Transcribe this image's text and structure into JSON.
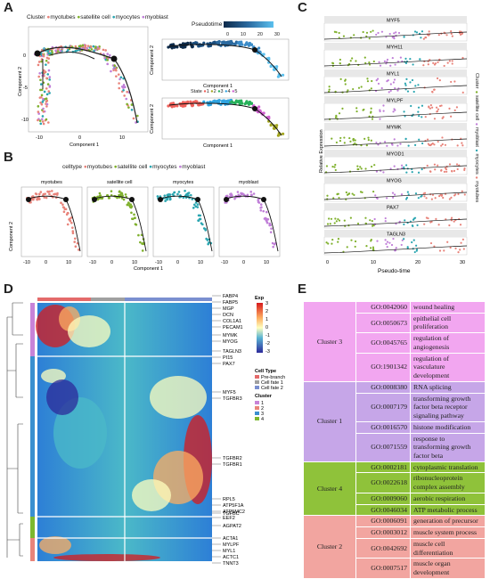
{
  "panels": {
    "a": "A",
    "b": "B",
    "c": "C",
    "d": "D",
    "e": "E"
  },
  "panel_a": {
    "legend_title": "Cluster",
    "legend_items": [
      "myotubes",
      "satellite cell",
      "myocytes",
      "myoblast"
    ],
    "legend_colors": [
      "#e8837a",
      "#7fb02c",
      "#2aa5b0",
      "#c07fd8"
    ],
    "pseudotime_title": "Pseudotime",
    "pseudotime_ticks": [
      "0",
      "10",
      "20",
      "30"
    ],
    "state_title": "State",
    "state_items": [
      "1",
      "2",
      "3",
      "4",
      "5"
    ],
    "state_colors": [
      "#f0605a",
      "#a3a520",
      "#27b05a",
      "#2ea3e0",
      "#d060d0"
    ],
    "ylabel": "Component 2",
    "xlabel": "Component 1",
    "xticks": [
      "-10",
      "0",
      "10"
    ],
    "yticks": [
      "0",
      "-5",
      "-10"
    ],
    "node_labels": [
      "1",
      "2",
      "3"
    ]
  },
  "panel_b": {
    "legend_title": "celltype",
    "legend_items": [
      "myotubes",
      "satellite cell",
      "myocytes",
      "myoblast"
    ],
    "legend_colors": [
      "#e8837a",
      "#7fb02c",
      "#2aa5b0",
      "#c07fd8"
    ],
    "facets": [
      "myotubes",
      "satellite cell",
      "myocytes",
      "myoblast"
    ],
    "ylabel": "Component 2",
    "xlabel": "Component 1",
    "xticks": [
      "-10",
      "0",
      "10"
    ]
  },
  "panel_c": {
    "genes": [
      "MYF5",
      "MYH11",
      "MYL1",
      "MYLPF",
      "MYMK",
      "MYOD1",
      "MYOG",
      "PAX7",
      "TAGLN3"
    ],
    "ylabel": "Relative Expression",
    "xlabel": "Pseudo-time",
    "xticks": [
      "0",
      "10",
      "20",
      "30"
    ],
    "legend_title": "Cluster",
    "legend_items": [
      "satellite cell",
      "myoblast",
      "myocytes",
      "myotubes"
    ]
  },
  "panel_d": {
    "exp_title": "Exp",
    "exp_ticks": [
      "3",
      "2",
      "1",
      "0",
      "-1",
      "-2",
      "-3"
    ],
    "celltype_title": "Cell Type",
    "celltype_items": [
      "Pre-branch",
      "Cell fate 1",
      "Cell fate 2"
    ],
    "celltype_colors": [
      "#e46a6a",
      "#a0a0a0",
      "#7a8fd0"
    ],
    "cluster_title": "Cluster",
    "cluster_items": [
      "1",
      "2",
      "3",
      "4"
    ],
    "cluster_colors": [
      "#c883d8",
      "#e9847a",
      "#3a8fd0",
      "#7cb82e"
    ],
    "gene_group_1": [
      "FABP4",
      "FABP5",
      "MGP",
      "DCN",
      "COL1A1",
      "PECAM1"
    ],
    "gene_group_2": [
      "MYMK",
      "MYOG"
    ],
    "gene_group_3": [
      "TAGLN3",
      "PI15",
      "PAX7"
    ],
    "gene_group_4": [
      "MYF5",
      "TGFBR3"
    ],
    "gene_group_5": [
      "TGFBR2",
      "TGFBR1"
    ],
    "gene_group_6": [
      "RPL5",
      "ATP5F1A",
      "ATP5MC2",
      "EEF2"
    ],
    "gene_single_1": "TGFBC",
    "gene_single_2": "AGPAT2",
    "gene_group_7": [
      "ACTA1",
      "MYLPF",
      "MYL1",
      "ACTC1",
      "TNNT3"
    ]
  },
  "panel_e": {
    "rows": [
      {
        "cluster": "Cluster 3",
        "color": "#f2a6f0",
        "ids": [
          "GO:0042060",
          "GO:0050673",
          "GO:0045765",
          "GO:1901342"
        ],
        "terms": [
          "wound healing",
          "epithelial cell proliferation",
          "regulation of angiogenesis",
          "regulation of vasculature development"
        ]
      },
      {
        "cluster": "Cluster 1",
        "color": "#c6a6e8",
        "ids": [
          "GO:0008380",
          "GO:0007179",
          "GO:0016570",
          "GO:0071559"
        ],
        "terms": [
          "RNA splicing",
          "transforming growth factor beta receptor signaling pathway",
          "histone modification",
          "response to transforming growth factor beta"
        ]
      },
      {
        "cluster": "Cluster 4",
        "color": "#8fc23a",
        "ids": [
          "GO:0002181",
          "GO:0022618",
          "GO:0009060",
          "GO:0046034"
        ],
        "terms": [
          "cytoplasmic translation",
          "ribonucleoprotein complex assembly",
          "aerobic respiration",
          "ATP metabolic process"
        ]
      },
      {
        "cluster": "Cluster 2",
        "color": "#f2a5a0",
        "ids": [
          "GO:0006091",
          "GO:0003012",
          "GO:0042692",
          "GO:0007517"
        ],
        "terms": [
          "generation of precursor",
          "muscle system process",
          "muscle cell differentiation",
          "muscle organ development"
        ]
      }
    ]
  }
}
